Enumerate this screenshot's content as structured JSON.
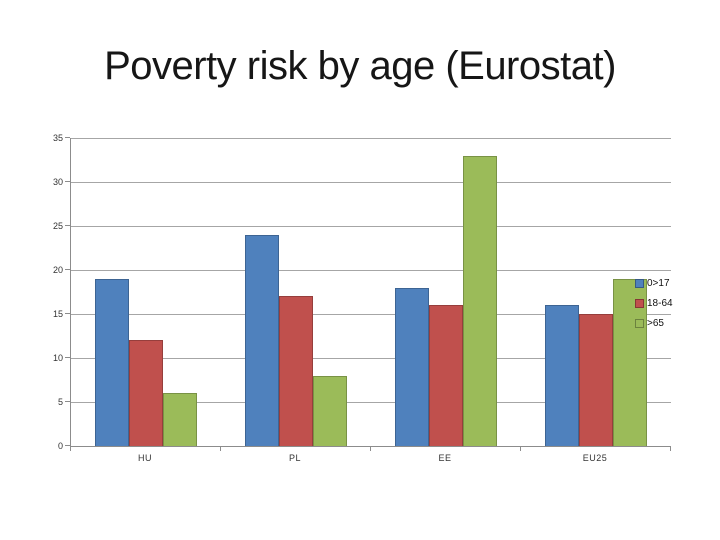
{
  "slide": {
    "title": "Poverty risk by age (Eurostat)"
  },
  "chart_data": {
    "type": "bar",
    "title": "Poverty risk by age (Eurostat)",
    "categories": [
      "HU",
      "PL",
      "EE",
      "EU25"
    ],
    "series": [
      {
        "name": "0>17",
        "color": "#4f81bd",
        "values": [
          19,
          24,
          18,
          16
        ]
      },
      {
        "name": "18-64",
        "color": "#c0504d",
        "values": [
          12,
          17,
          16,
          15
        ]
      },
      {
        "name": ">65",
        "color": "#9bbb59",
        "values": [
          6,
          8,
          33,
          19
        ]
      }
    ],
    "xlabel": "",
    "ylabel": "",
    "ylim": [
      0,
      35
    ],
    "ytick_step": 5,
    "yticks": [
      0,
      5,
      10,
      15,
      20,
      25,
      30,
      35
    ],
    "grid": true,
    "legend_position": "right-inside-plot",
    "legend_labels": [
      "0>17",
      "18-64",
      ">65"
    ],
    "colors": {
      "gridline": "#a6a6a6",
      "axis": "#8c8c8c",
      "axis_text": "#333333",
      "legend_text": "#111111",
      "title_text": "#161616",
      "background": "#ffffff"
    }
  }
}
